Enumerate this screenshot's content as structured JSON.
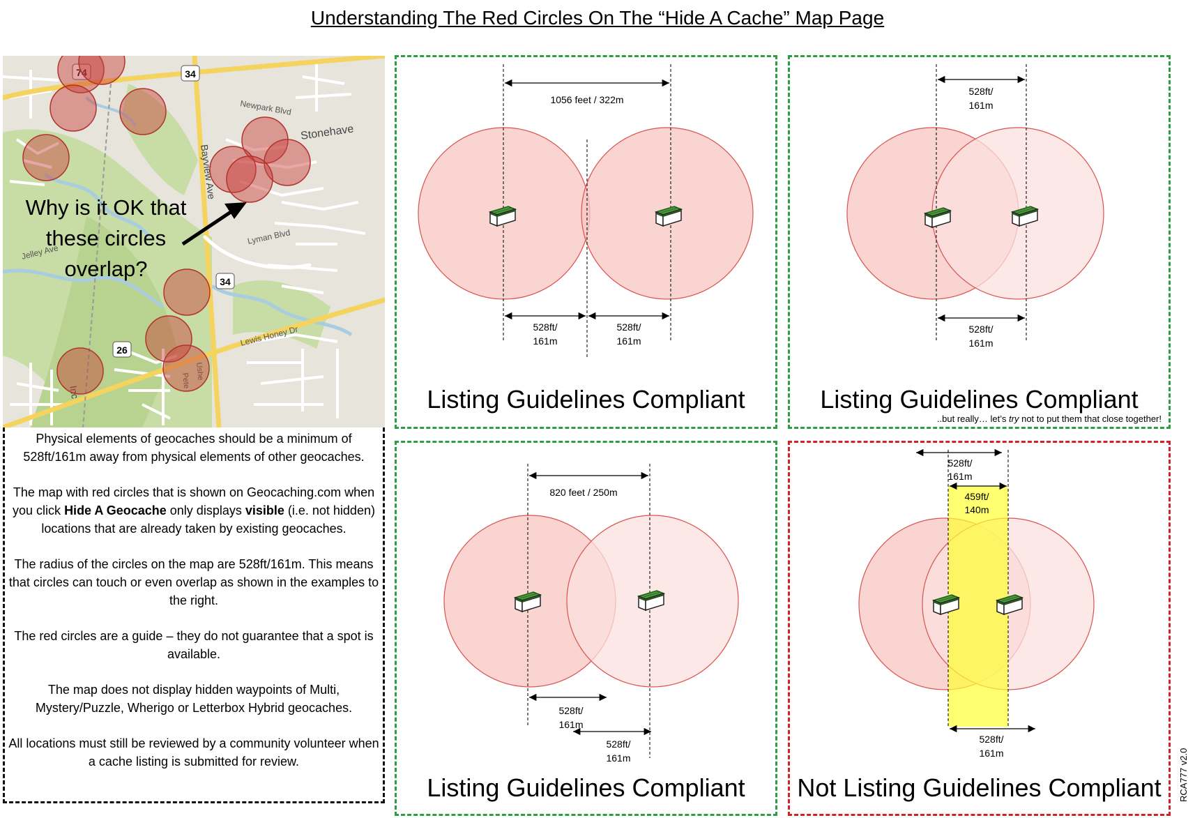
{
  "title": "Understanding The Red Circles On The “Hide A Cache” Map Page",
  "map": {
    "question_lines": [
      "Why is it OK that",
      "these circles",
      "overlap?"
    ],
    "road_labels": {
      "route_74": "74",
      "route_34_top": "34",
      "route_34_mid": "34",
      "route_26": "26",
      "newpark": "Newpark Blvd",
      "stonehaven": "Stonehave",
      "bayview": "Bayview Ave",
      "lyman": "Lyman Blvd",
      "jelley": "Jelley Ave",
      "lewis_honey": "Lewis Honey Dr",
      "inc": "Inc",
      "pete": "Pete",
      "ushe": "Ushe"
    }
  },
  "info": {
    "p1": "Physical elements of geocaches should be a minimum of 528ft/161m away from physical elements of other geocaches.",
    "p2_a": "The map with red circles that is shown on Geocaching.com when you click ",
    "p2_b": "Hide A Geocache",
    "p2_c": " only displays ",
    "p2_d": "visible",
    "p2_e": " (i.e. not hidden) locations that are already taken by existing geocaches.",
    "p3": "The radius of the circles on the map are 528ft/161m. This means that circles can touch or even overlap as shown in the examples to the right.",
    "p4": "The red circles are a guide – they do not guarantee that a spot is available.",
    "p5": "The map does not display hidden waypoints of Multi, Mystery/Puzzle, Wherigo or Letterbox Hybrid geocaches.",
    "p6": "All locations must still be reviewed by a community volunteer when a cache listing is submitted for review."
  },
  "panels": {
    "p1": {
      "caption": "Listing Guidelines Compliant",
      "dim_top": "1056 feet / 322m",
      "dim_left_1": "528ft/",
      "dim_left_2": "161m",
      "dim_right_1": "528ft/",
      "dim_right_2": "161m"
    },
    "p2": {
      "caption": "Listing Guidelines Compliant",
      "note_a": "..but really… let’s ",
      "note_b": "try",
      "note_c": " not to put them that close together!",
      "dim_top_1": "528ft/",
      "dim_top_2": "161m",
      "dim_bot_1": "528ft/",
      "dim_bot_2": "161m"
    },
    "p3": {
      "caption": "Listing Guidelines Compliant",
      "dim_top": "820 feet / 250m",
      "dim_a_1": "528ft/",
      "dim_a_2": "161m",
      "dim_b_1": "528ft/",
      "dim_b_2": "161m"
    },
    "p4": {
      "caption": "Not Listing Guidelines Compliant",
      "dim_top_1": "528ft/",
      "dim_top_2": "161m",
      "dim_yellow_1": "459ft/",
      "dim_yellow_2": "140m",
      "dim_bot_1": "528ft/",
      "dim_bot_2": "161m"
    }
  },
  "version": "RCA777 v2.0",
  "colors": {
    "compliant_border": "#2e9e45",
    "noncompliant_border": "#d4202a",
    "circle_fill": "#f4a9a3",
    "circle_stroke": "#d9534f",
    "overlap_highlight": "#ffff66"
  }
}
